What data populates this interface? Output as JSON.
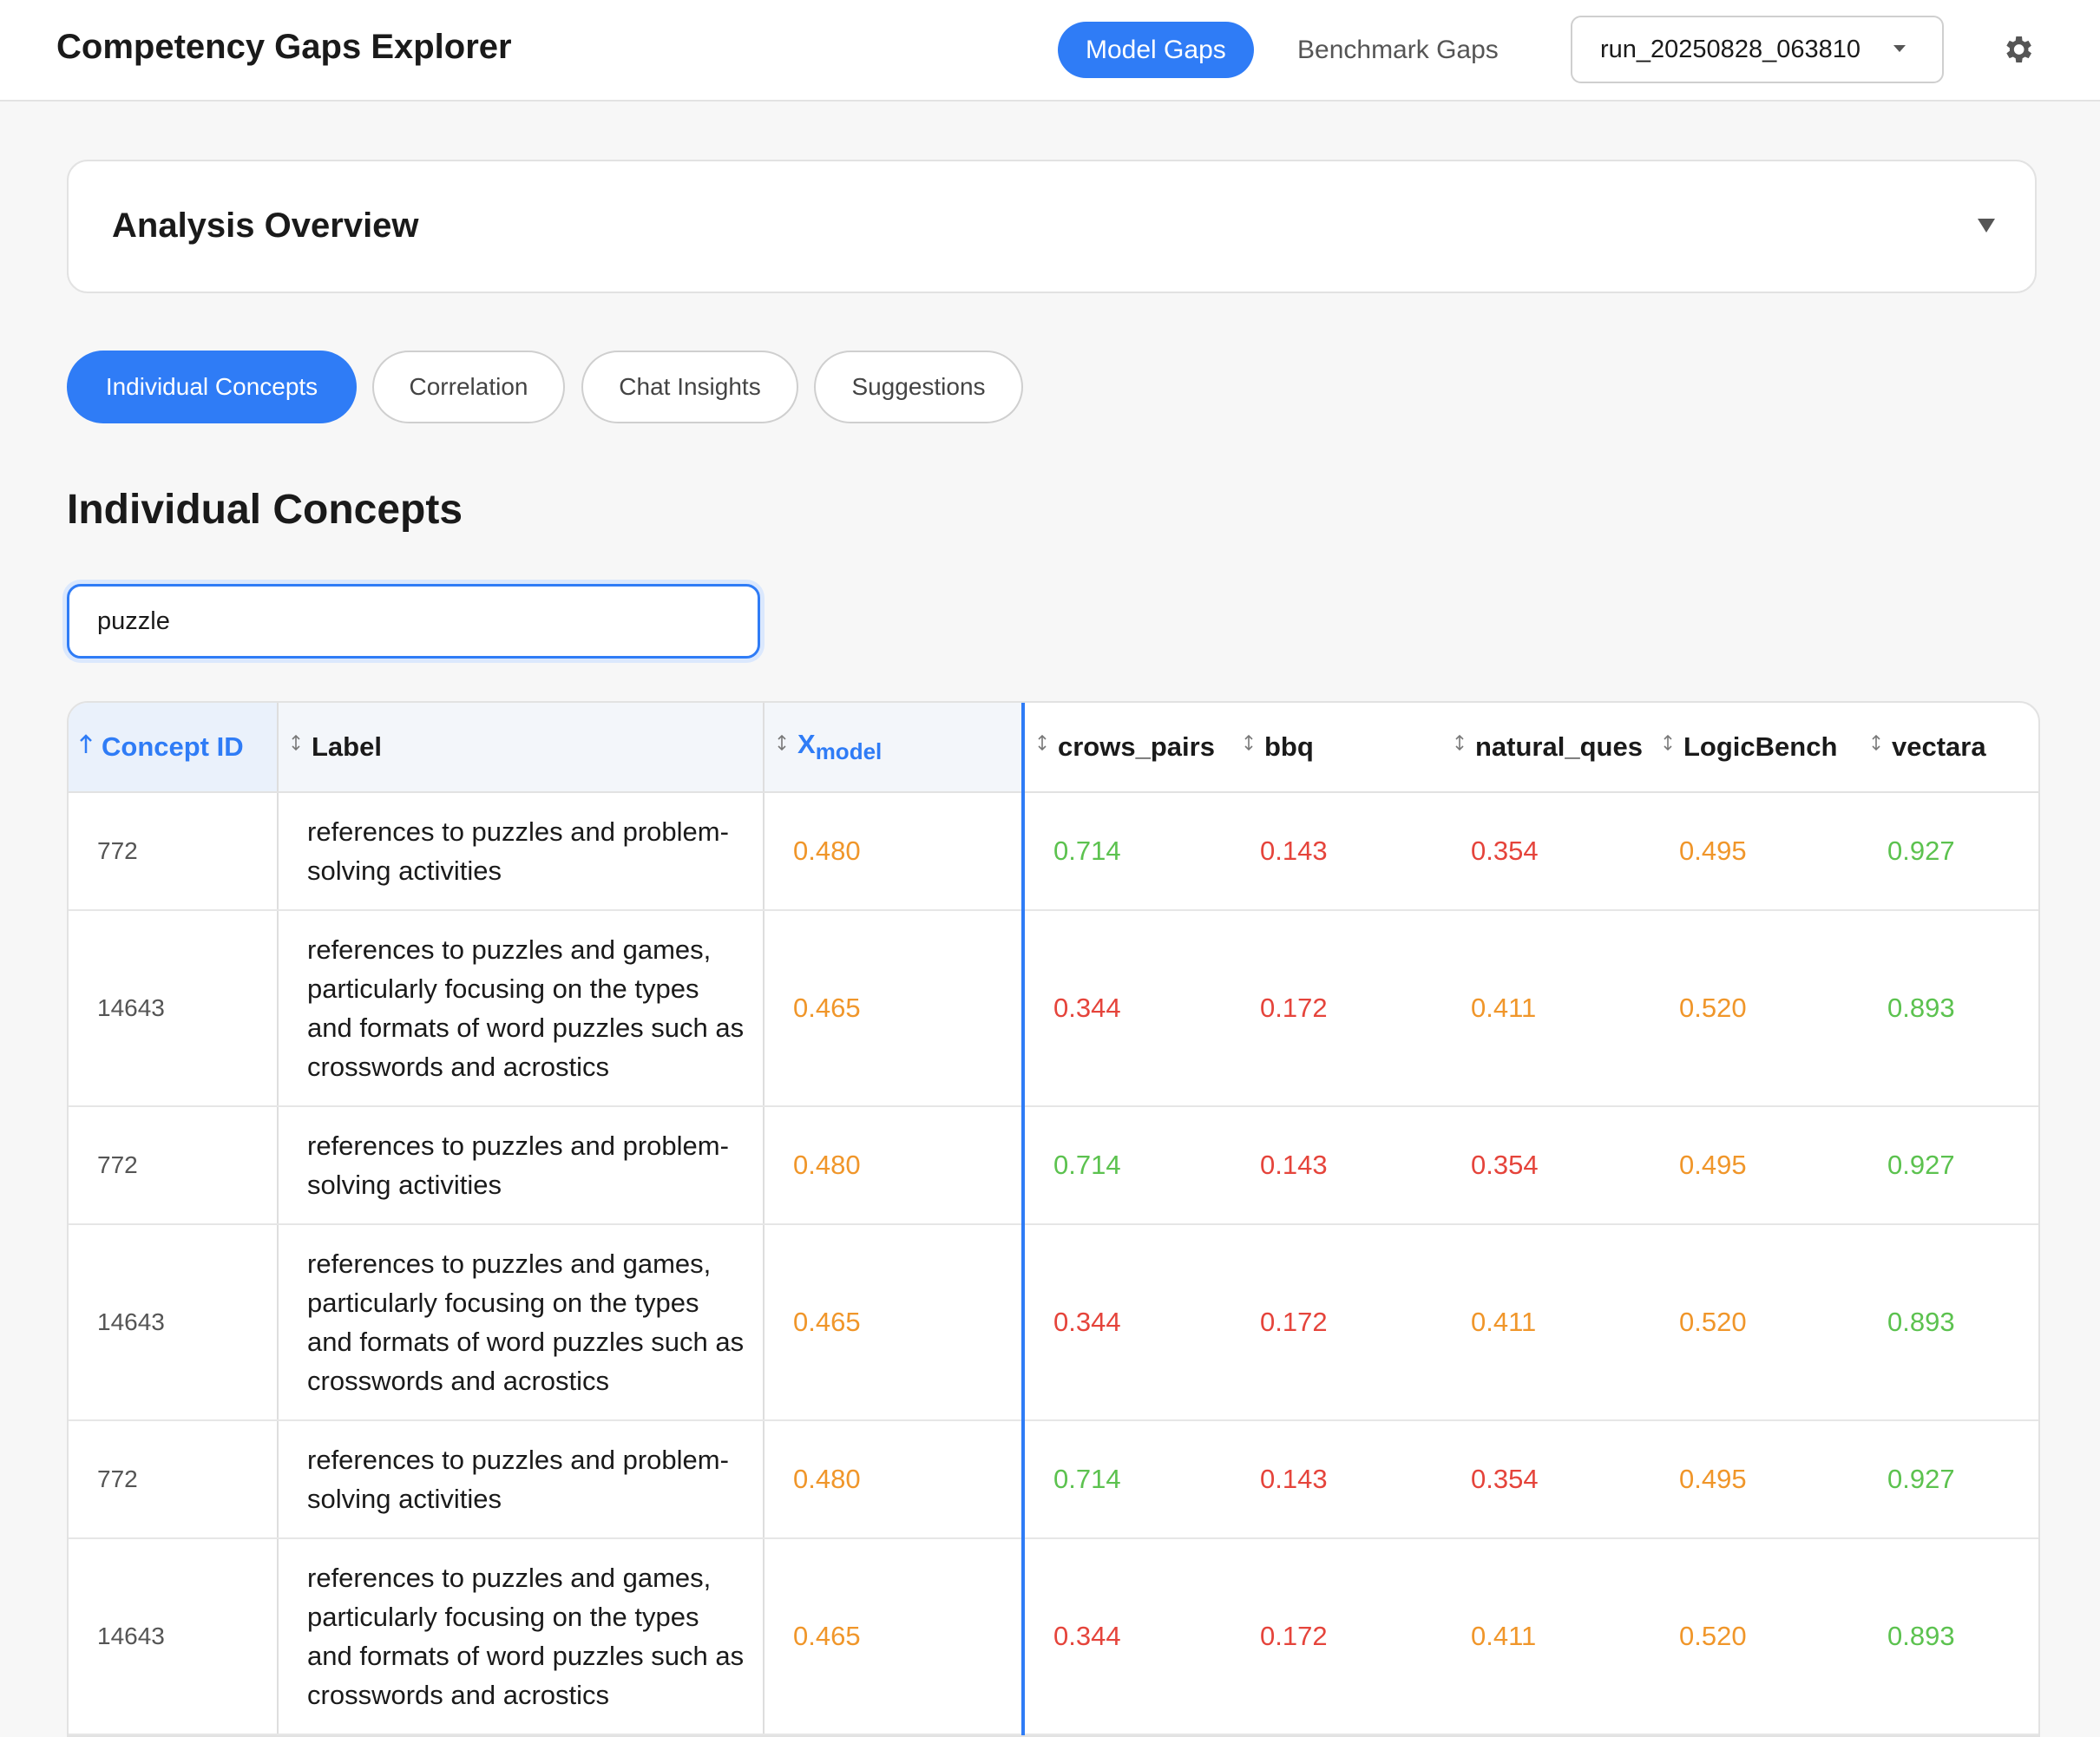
{
  "header": {
    "title": "Competency Gaps Explorer",
    "nav": [
      "Model Gaps",
      "Benchmark Gaps"
    ],
    "run": "run_20250828_063810"
  },
  "overview": {
    "title": "Analysis Overview"
  },
  "tabs": [
    "Individual Concepts",
    "Correlation",
    "Chat Insights",
    "Suggestions"
  ],
  "section_title": "Individual Concepts",
  "search": "puzzle",
  "table": {
    "columns": [
      {
        "text": "Concept ID"
      },
      {
        "text": "Label"
      },
      {
        "text": "X",
        "sub": "model"
      },
      {
        "text": "crows_pairs"
      },
      {
        "text": "bbq"
      },
      {
        "text": "natural_ques"
      },
      {
        "text": "LogicBench"
      },
      {
        "text": "vectara"
      }
    ],
    "rows": [
      [
        772,
        "references to puzzles and problem-solving activities",
        "0.480",
        "0.714",
        "0.143",
        "0.354",
        "0.495",
        "0.927"
      ],
      [
        14643,
        "references to puzzles and games, particularly focusing on the types and formats of word puzzles such as crosswords and acrostics",
        "0.465",
        "0.344",
        "0.172",
        "0.411",
        "0.520",
        "0.893"
      ],
      [
        772,
        "references to puzzles and problem-solving activities",
        "0.480",
        "0.714",
        "0.143",
        "0.354",
        "0.495",
        "0.927"
      ],
      [
        14643,
        "references to puzzles and games, particularly focusing on the types and formats of word puzzles such as crosswords and acrostics",
        "0.465",
        "0.344",
        "0.172",
        "0.411",
        "0.520",
        "0.893"
      ],
      [
        772,
        "references to puzzles and problem-solving activities",
        "0.480",
        "0.714",
        "0.143",
        "0.354",
        "0.495",
        "0.927"
      ],
      [
        14643,
        "references to puzzles and games, particularly focusing on the types and formats of word puzzles such as crosswords and acrostics",
        "0.465",
        "0.344",
        "0.172",
        "0.411",
        "0.520",
        "0.893"
      ]
    ]
  }
}
